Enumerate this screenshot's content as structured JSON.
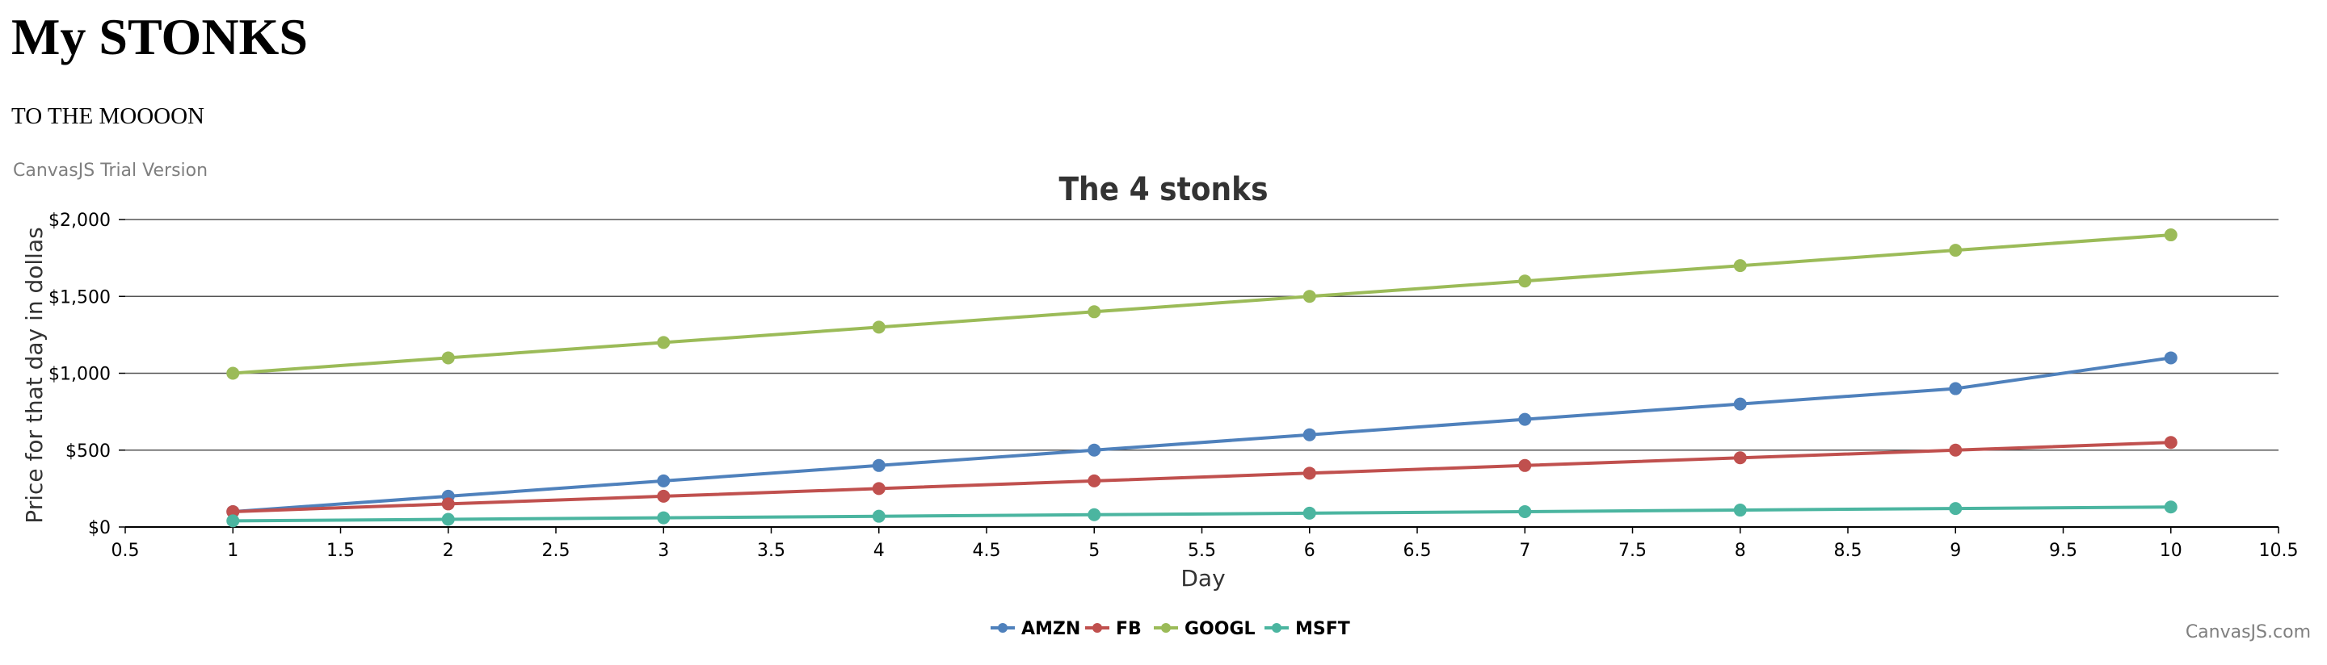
{
  "page": {
    "title": "My STONKS",
    "subtitle": "TO THE MOOOON"
  },
  "watermark": {
    "trial": "CanvasJS Trial Version",
    "credit": "CanvasJS.com"
  },
  "colors": {
    "AMZN": "#4F81BC",
    "FB": "#C0504E",
    "GOOGL": "#9BBB58",
    "MSFT": "#4BB5A0",
    "title": "#333333",
    "axis": "#000000",
    "grid": "#555555",
    "watermark": "#7f7f7f"
  },
  "chart_data": {
    "type": "line",
    "title": "The 4 stonks",
    "xlabel": "Day",
    "ylabel": "Price for that day in dollas",
    "xlim": [
      0.5,
      10.5
    ],
    "ylim": [
      0,
      2000
    ],
    "x_ticks": [
      0.5,
      1,
      1.5,
      2,
      2.5,
      3,
      3.5,
      4,
      4.5,
      5,
      5.5,
      6,
      6.5,
      7,
      7.5,
      8,
      8.5,
      9,
      9.5,
      10,
      10.5
    ],
    "y_ticks": [
      0,
      500,
      1000,
      1500,
      2000
    ],
    "y_tick_labels": [
      "$0",
      "$500",
      "$1,000",
      "$1,500",
      "$2,000"
    ],
    "grid": "horizontal",
    "legend": "bottom-center",
    "x": [
      1,
      2,
      3,
      4,
      5,
      6,
      7,
      8,
      9,
      10
    ],
    "series": [
      {
        "name": "AMZN",
        "values": [
          100,
          200,
          300,
          400,
          500,
          600,
          700,
          800,
          900,
          1100
        ]
      },
      {
        "name": "FB",
        "values": [
          100,
          150,
          200,
          250,
          300,
          350,
          400,
          450,
          500,
          550
        ]
      },
      {
        "name": "GOOGL",
        "values": [
          1000,
          1100,
          1200,
          1300,
          1400,
          1500,
          1600,
          1700,
          1800,
          1900
        ]
      },
      {
        "name": "MSFT",
        "values": [
          40,
          50,
          60,
          70,
          80,
          90,
          100,
          110,
          120,
          130
        ]
      }
    ]
  }
}
